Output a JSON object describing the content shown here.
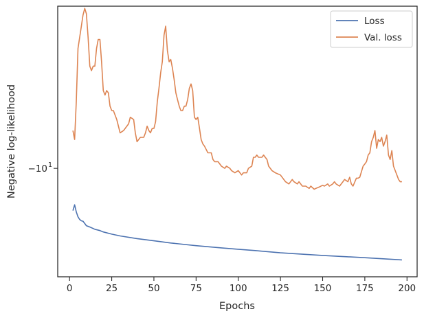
{
  "chart_data": {
    "type": "line",
    "title": "",
    "xlabel": "Epochs",
    "ylabel": "Negative log-likelihood",
    "xlim": [
      -7,
      206
    ],
    "ylim_log10_abs": [
      1.0365,
      0.9756
    ],
    "yscale": "symlog (y = -10^v, axis labelled −10^1)",
    "x_ticks": [
      0,
      25,
      50,
      75,
      100,
      125,
      150,
      175,
      200
    ],
    "y_ticks": [
      {
        "value": -10,
        "label_base": "−10",
        "label_exp": "1"
      }
    ],
    "grid": false,
    "legend": "top-right",
    "legend_entries": [
      "Loss",
      "Val. loss"
    ],
    "series": [
      {
        "name": "Loss",
        "color": "#4c72b0",
        "x": [
          2,
          3,
          4,
          5,
          6,
          7,
          8,
          9,
          10,
          12,
          15,
          18,
          20,
          25,
          30,
          40,
          50,
          60,
          75,
          90,
          100,
          110,
          125,
          150,
          175,
          197
        ],
        "log10_abs_y": [
          0.9905,
          0.9918,
          0.9902,
          0.9891,
          0.9885,
          0.9882,
          0.9881,
          0.9876,
          0.9871,
          0.9868,
          0.9863,
          0.986,
          0.9857,
          0.9852,
          0.9848,
          0.9842,
          0.9837,
          0.9832,
          0.9826,
          0.9821,
          0.9818,
          0.9815,
          0.981,
          0.9804,
          0.9799,
          0.9794
        ]
      },
      {
        "name": "Val. loss",
        "color": "#dd8452",
        "x": [
          2,
          3,
          4,
          5,
          7,
          8,
          9,
          10,
          11,
          12,
          13,
          14,
          15,
          16,
          17,
          18,
          19,
          20,
          21,
          22,
          23,
          24,
          25,
          26,
          28,
          30,
          32,
          35,
          36,
          38,
          39,
          40,
          42,
          44,
          45,
          46,
          47,
          48,
          49,
          50,
          51,
          52,
          53,
          54,
          55,
          56,
          57,
          58,
          59,
          60,
          61,
          62,
          63,
          64,
          65,
          66,
          67,
          68,
          69,
          70,
          71,
          72,
          73,
          74,
          75,
          76,
          77,
          78,
          79,
          80,
          82,
          84,
          85,
          86,
          88,
          90,
          92,
          93,
          95,
          96,
          98,
          100,
          102,
          103,
          105,
          106,
          108,
          109,
          110,
          111,
          112,
          113,
          114,
          115,
          116,
          117,
          118,
          120,
          122,
          125,
          128,
          130,
          132,
          133,
          135,
          136,
          138,
          140,
          142,
          143,
          145,
          146,
          148,
          150,
          151,
          153,
          154,
          156,
          157,
          158,
          160,
          162,
          163,
          165,
          166,
          167,
          168,
          170,
          171,
          172,
          174,
          175,
          176,
          177,
          178,
          179,
          180,
          181,
          182,
          183,
          184,
          185,
          186,
          187,
          188,
          189,
          190,
          191,
          192,
          193,
          195,
          196,
          197
        ],
        "log10_abs_y": [
          1.0085,
          1.0065,
          1.015,
          1.027,
          1.032,
          1.0345,
          1.036,
          1.0348,
          1.0295,
          1.023,
          1.022,
          1.023,
          1.023,
          1.027,
          1.029,
          1.029,
          1.024,
          1.0175,
          1.0165,
          1.0175,
          1.017,
          1.014,
          1.013,
          1.013,
          1.011,
          1.008,
          1.0085,
          1.01,
          1.0115,
          1.011,
          1.008,
          1.006,
          1.007,
          1.007,
          1.008,
          1.0095,
          1.0085,
          1.008,
          1.009,
          1.009,
          1.0105,
          1.015,
          1.018,
          1.0215,
          1.024,
          1.03,
          1.032,
          1.0265,
          1.024,
          1.0245,
          1.0225,
          1.02,
          1.017,
          1.0155,
          1.014,
          1.013,
          1.013,
          1.014,
          1.014,
          1.0155,
          1.018,
          1.019,
          1.0175,
          1.0115,
          1.011,
          1.0115,
          1.009,
          1.0065,
          1.0055,
          1.005,
          1.0035,
          1.0035,
          1.002,
          1.0015,
          1.0015,
          1.0005,
          1.0,
          1.0005,
          1.0,
          0.9995,
          0.999,
          0.9995,
          0.9985,
          0.999,
          0.999,
          1.0,
          1.0005,
          1.0025,
          1.0025,
          1.003,
          1.0025,
          1.0025,
          1.0025,
          1.003,
          1.0025,
          1.002,
          1.0005,
          0.9995,
          0.999,
          0.9985,
          0.997,
          0.9965,
          0.9975,
          0.997,
          0.9965,
          0.997,
          0.996,
          0.996,
          0.9955,
          0.996,
          0.9953,
          0.9955,
          0.9958,
          0.9962,
          0.996,
          0.9965,
          0.996,
          0.9965,
          0.997,
          0.9965,
          0.996,
          0.997,
          0.9975,
          0.997,
          0.998,
          0.9965,
          0.996,
          0.9978,
          0.9978,
          0.998,
          1.0005,
          1.001,
          1.0015,
          1.003,
          1.0035,
          1.006,
          1.007,
          1.0085,
          1.0045,
          1.0065,
          1.006,
          1.007,
          1.005,
          1.006,
          1.0075,
          1.003,
          1.002,
          1.004,
          1.0005,
          0.9995,
          0.9975,
          0.997,
          0.997
        ]
      }
    ]
  }
}
